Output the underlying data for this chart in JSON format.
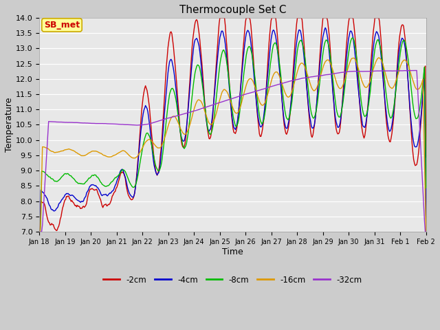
{
  "title": "Thermocouple Set C",
  "xlabel": "Time",
  "ylabel": "Temperature",
  "ylim": [
    7.0,
    14.0
  ],
  "yticks": [
    7.0,
    7.5,
    8.0,
    8.5,
    9.0,
    9.5,
    10.0,
    10.5,
    11.0,
    11.5,
    12.0,
    12.5,
    13.0,
    13.5,
    14.0
  ],
  "series_colors": {
    "-2cm": "#cc0000",
    "-4cm": "#0000cc",
    "-8cm": "#00bb00",
    "-16cm": "#dd9900",
    "-32cm": "#9933cc"
  },
  "legend_entries": [
    "-2cm",
    "-4cm",
    "-8cm",
    "-16cm",
    "-32cm"
  ],
  "annotation_text": "SB_met",
  "annotation_color": "#cc0000",
  "annotation_bg": "#ffff99",
  "annotation_border": "#ccaa00",
  "x_tick_labels": [
    "Jan 18",
    "Jan 19",
    "Jan 20",
    "Jan 21",
    "Jan 22",
    "Jan 23",
    "Jan 24",
    "Jan 25",
    "Jan 26",
    "Jan 27",
    "Jan 28",
    "Jan 29",
    "Jan 30",
    "Jan 31",
    "Feb 1",
    "Feb 2"
  ],
  "figwidth": 6.4,
  "figheight": 4.8,
  "dpi": 100
}
